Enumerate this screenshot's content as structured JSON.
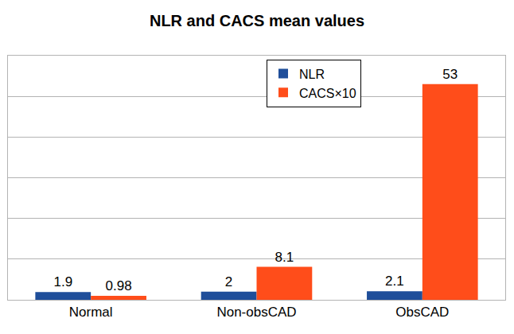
{
  "chart_data": {
    "type": "bar",
    "title": "NLR and CACS mean values",
    "categories": [
      "Normal",
      "Non-obsCAD",
      "ObsCAD"
    ],
    "series": [
      {
        "name": "NLR",
        "color": "#1f4e9a",
        "values": [
          1.9,
          2,
          2.1
        ]
      },
      {
        "name": "CACS×10",
        "color": "#ff4d1a",
        "values": [
          0.98,
          8.1,
          53
        ]
      }
    ],
    "ylim": [
      0,
      60
    ],
    "yticks": [
      0,
      10,
      20,
      30,
      40,
      50,
      60
    ],
    "grid": true,
    "legend": "top",
    "data_labels": true,
    "tick_labels": "x"
  }
}
